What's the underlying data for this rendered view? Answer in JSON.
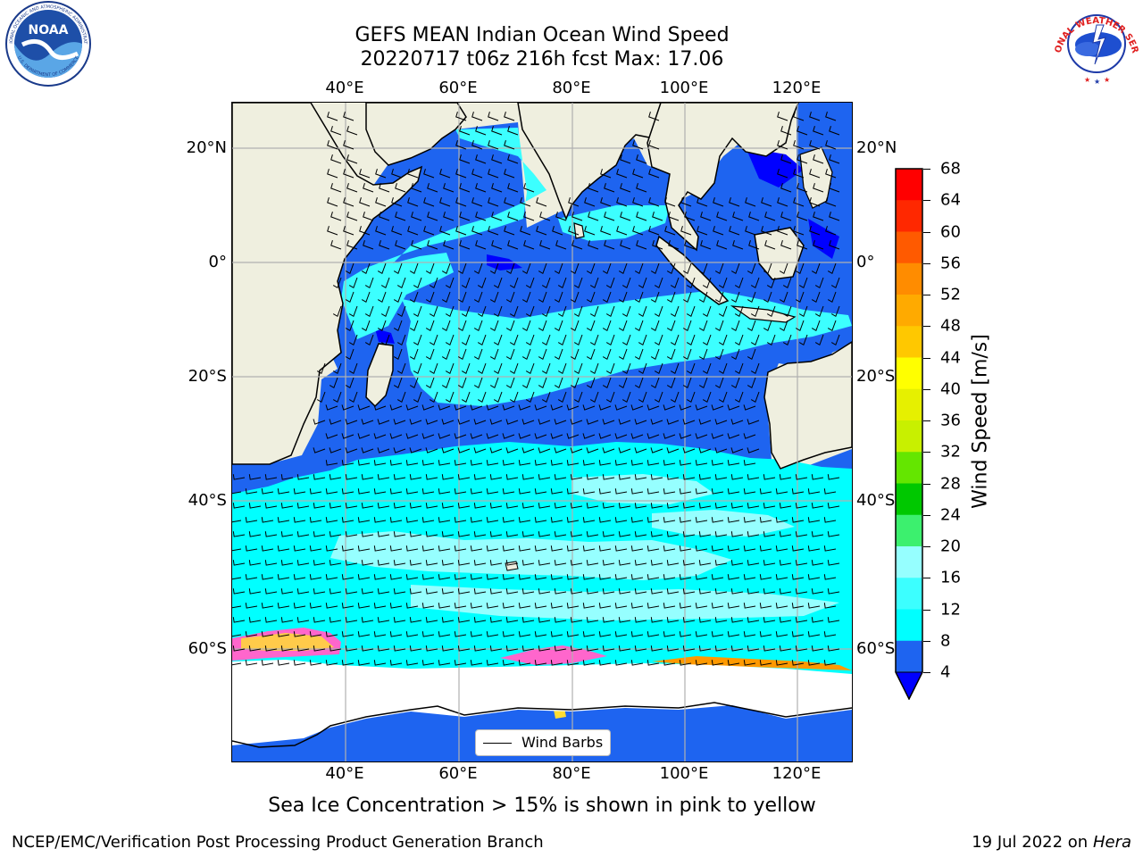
{
  "title": {
    "line1": "GEFS MEAN Indian Ocean Wind Speed",
    "line2": "20220717 t06z 216h fcst   Max: 17.06"
  },
  "logos": {
    "noaa": {
      "text": "NOAA",
      "ring_text": "NATIONAL OCEANIC AND ATMOSPHERIC ADMINISTRATION",
      "ring_bottom": "U.S. DEPARTMENT OF COMMERCE"
    },
    "nws": {
      "ring_text": "NATIONAL WEATHER SERVICE"
    }
  },
  "axes": {
    "lon_ticks": [
      "40°E",
      "60°E",
      "80°E",
      "100°E",
      "120°E"
    ],
    "lat_ticks": [
      "20°N",
      "0°",
      "20°S",
      "40°S",
      "60°S"
    ]
  },
  "colorbar": {
    "label": "Wind Speed [m/s]",
    "ticks": [
      "4",
      "8",
      "12",
      "16",
      "20",
      "24",
      "28",
      "32",
      "36",
      "40",
      "44",
      "48",
      "52",
      "56",
      "60",
      "64",
      "68"
    ],
    "colors": [
      "#1e64f0",
      "#00ffff",
      "#3cffff",
      "#96ffff",
      "#3cf06e",
      "#28dc28",
      "#00c800",
      "#64e600",
      "#c8f000",
      "#e6f000",
      "#ffff00",
      "#ffe100",
      "#ffc800",
      "#ffaa00",
      "#ff8c00",
      "#ff5a00",
      "#ff2800",
      "#ff0000"
    ],
    "under_color": "#0000ff"
  },
  "legend": {
    "label": "Wind Barbs"
  },
  "subtitle": "Sea Ice Concentration > 15% is shown in pink to yellow",
  "footer": {
    "left": "NCEP/EMC/Verification Post Processing Product Generation Branch",
    "right_date": "19 Jul 2022 on",
    "right_host": "Hera"
  },
  "map_colors": {
    "land": "#efefdf",
    "ocean_deep": "#1e64f0",
    "speed_8_12": "#00ffff",
    "speed_12_16": "#3cffff",
    "speed_16_20": "#96ffff",
    "dark": "#0000ff",
    "antarctica": "#ffffff",
    "ice_pink": "#ff66cc",
    "ice_yellow": "#ffdd33",
    "ice_orange": "#ff9900"
  }
}
